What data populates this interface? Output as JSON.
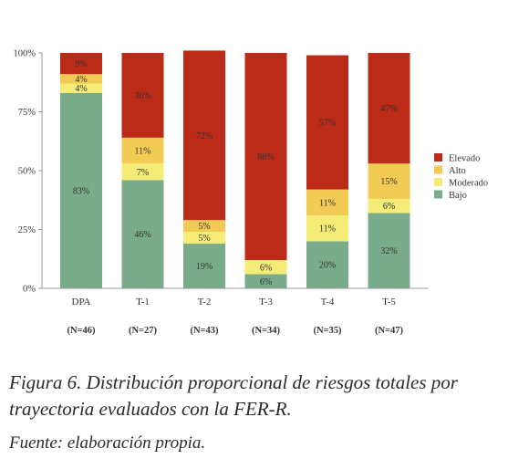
{
  "chart_data": {
    "type": "bar",
    "stacked": true,
    "categories": [
      "DPA",
      "T-1",
      "T-2",
      "T-3",
      "T-4",
      "T-5"
    ],
    "sample_sizes": [
      "(N=46)",
      "(N=27)",
      "(N=43)",
      "(N=34)",
      "(N=35)",
      "(N=47)"
    ],
    "series": [
      {
        "name": "Bajo",
        "color": "#7aab8a",
        "values": [
          83,
          46,
          19,
          6,
          20,
          32
        ],
        "labels": [
          "83%",
          "46%",
          "19%",
          "6%",
          "20%",
          "32%"
        ]
      },
      {
        "name": "Moderado",
        "color": "#f5ec77",
        "values": [
          4,
          7,
          5,
          6,
          11,
          6
        ],
        "labels": [
          "4%",
          "7%",
          "5%",
          "6%",
          "11%",
          "6%"
        ]
      },
      {
        "name": "Alto",
        "color": "#f2cb55",
        "values": [
          4,
          11,
          5,
          0,
          11,
          15
        ],
        "labels": [
          "4%",
          "11%",
          "5%",
          "",
          "11%",
          "15%"
        ]
      },
      {
        "name": "Elevado",
        "color": "#bb2b17",
        "values": [
          9,
          36,
          72,
          88,
          57,
          47
        ],
        "labels": [
          "9%",
          "36%",
          "72%",
          "88%",
          "57%",
          "47%"
        ]
      }
    ],
    "y_ticks": [
      "0%",
      "25%",
      "50%",
      "75%",
      "100%"
    ],
    "y_tick_values": [
      0,
      25,
      50,
      75,
      100
    ],
    "ylim": [
      0,
      100
    ],
    "legend": {
      "placement": "right",
      "order": [
        "Elevado",
        "Alto",
        "Moderado",
        "Bajo"
      ]
    },
    "grid": false
  },
  "caption": {
    "title": "Figura 6. Distribución proporcional de riesgos totales por trayectoria evaluados con la FER-R.",
    "source": "Fuente: elaboración propia."
  }
}
